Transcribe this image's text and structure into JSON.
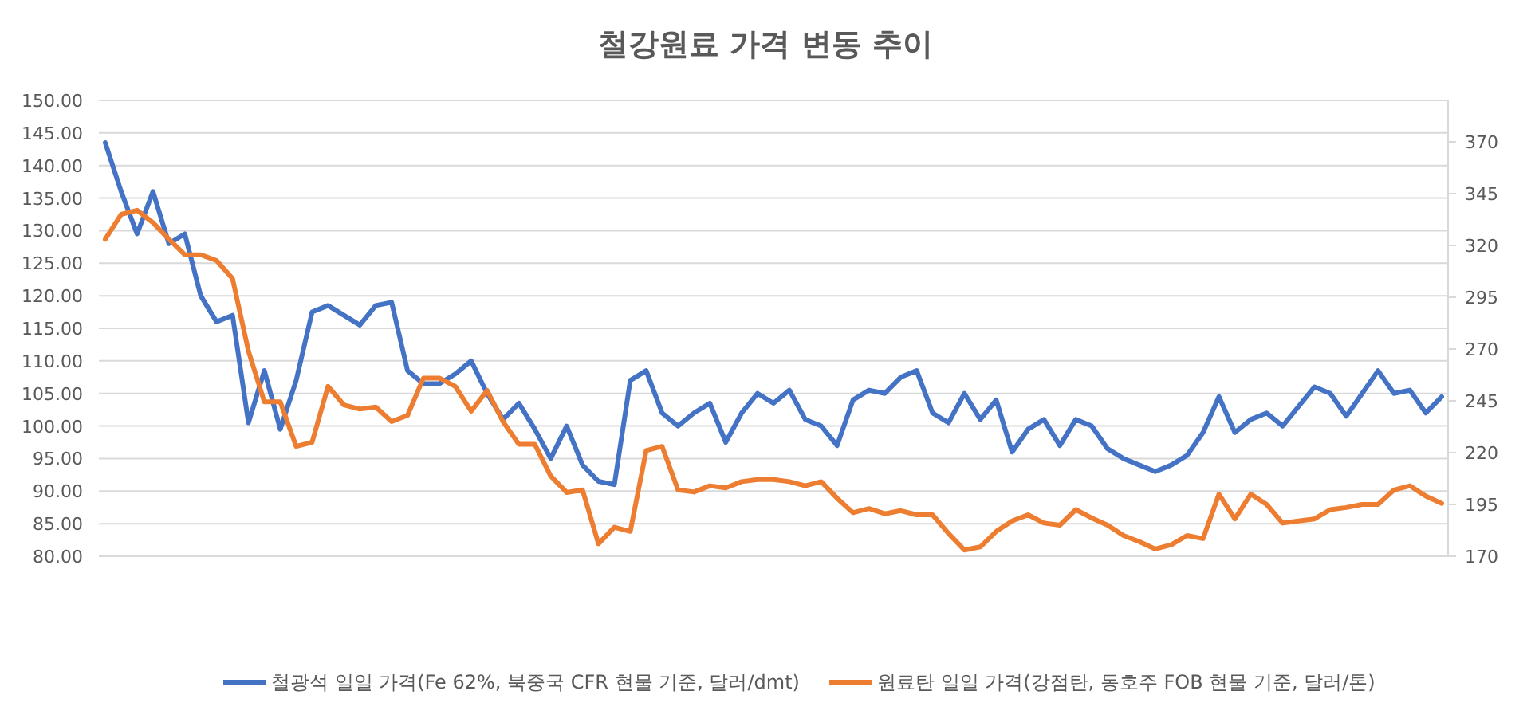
{
  "chart_data": {
    "type": "line",
    "title": "철강원료 가격 변동 추이",
    "categories": [
      null,
      null,
      null,
      null,
      null,
      null,
      null,
      null,
      null,
      null,
      null,
      null,
      null,
      null,
      null,
      null,
      null,
      null,
      null,
      null,
      null,
      null,
      null,
      null,
      null,
      null,
      null,
      null,
      null,
      null,
      null,
      null,
      null,
      null,
      null,
      null,
      null,
      null,
      null,
      null,
      null,
      null,
      null,
      null,
      null,
      null,
      null,
      null,
      null,
      null,
      null,
      null,
      null,
      null,
      null,
      null,
      null,
      null,
      null,
      null,
      null,
      null,
      null,
      null,
      null,
      null,
      null,
      null,
      null,
      null,
      null,
      null,
      null,
      null,
      null,
      null,
      null,
      null,
      null,
      null,
      null,
      null,
      null,
      null,
      null
    ],
    "series": [
      {
        "name": "철광석 일일 가격(Fe 62%, 북중국 CFR 현물 기준, 달러/dmt)",
        "color": "#4472c4",
        "values": [
          143.5,
          136,
          129.5,
          136,
          128,
          129.5,
          120,
          116,
          117,
          100.5,
          108.5,
          99.5,
          107,
          117.5,
          118.5,
          117,
          115.5,
          118.5,
          119,
          108.5,
          106.5,
          106.5,
          108,
          110,
          105,
          101,
          103.5,
          99.5,
          95,
          100,
          94,
          91.5,
          91,
          107,
          108.5,
          102,
          100,
          102,
          103.5,
          97.5,
          102,
          105,
          103.5,
          105.5,
          101,
          100,
          97,
          104,
          105.5,
          105,
          107.5,
          108.5,
          102,
          100.5,
          105,
          101,
          104,
          96,
          99.5,
          101,
          97,
          101,
          100,
          96.5,
          95,
          94,
          93,
          94,
          95.5,
          99,
          104.5,
          99,
          101,
          102,
          100,
          103,
          106,
          105,
          101.5,
          105,
          108.5,
          105,
          105.5,
          102,
          104.5
        ]
      },
      {
        "name": "원료탄 일일 가격(강점탄, 동호주 FOB 현물 기준, 달러/톤)",
        "color": "#ed7d31",
        "axis": "y2",
        "values": [
          323,
          335,
          337,
          331,
          323,
          315.5,
          315.5,
          312.7,
          304,
          269,
          244.5,
          244.5,
          223,
          225,
          252,
          243,
          241,
          242,
          235,
          238,
          256,
          256,
          252,
          240,
          250,
          235,
          224,
          224,
          208.7,
          200.8,
          202,
          176,
          184,
          182,
          221,
          223,
          202,
          201,
          204,
          203,
          206,
          207,
          207,
          206,
          204,
          206,
          198,
          191,
          193,
          190.5,
          192,
          190,
          190,
          181,
          173,
          174.5,
          182,
          187,
          190,
          186,
          185,
          192.5,
          188.5,
          185,
          180,
          177,
          173.5,
          175.5,
          180,
          178.5,
          200,
          188,
          200,
          195,
          186,
          187,
          188,
          192.5,
          193.5,
          195,
          195,
          202,
          204,
          199,
          195.5
        ]
      }
    ],
    "ylim": [
      80,
      150
    ],
    "yticks": [
      {
        "value": 80,
        "label": "80.00"
      },
      {
        "value": 85,
        "label": "85.00"
      },
      {
        "value": 90,
        "label": "90.00"
      },
      {
        "value": 95,
        "label": "95.00"
      },
      {
        "value": 100,
        "label": "100.00"
      },
      {
        "value": 105,
        "label": "105.00"
      },
      {
        "value": 110,
        "label": "110.00"
      },
      {
        "value": 115,
        "label": "115.00"
      },
      {
        "value": 120,
        "label": "120.00"
      },
      {
        "value": 125,
        "label": "125.00"
      },
      {
        "value": 130,
        "label": "130.00"
      },
      {
        "value": 135,
        "label": "135.00"
      },
      {
        "value": 140,
        "label": "140.00"
      },
      {
        "value": 145,
        "label": "145.00"
      },
      {
        "value": 150,
        "label": "150.00"
      }
    ],
    "y2lim": [
      170,
      390
    ],
    "y2ticks": [
      170,
      195,
      220,
      245,
      270,
      295,
      320,
      345,
      370
    ],
    "grid": "y",
    "legend": "bottom"
  }
}
